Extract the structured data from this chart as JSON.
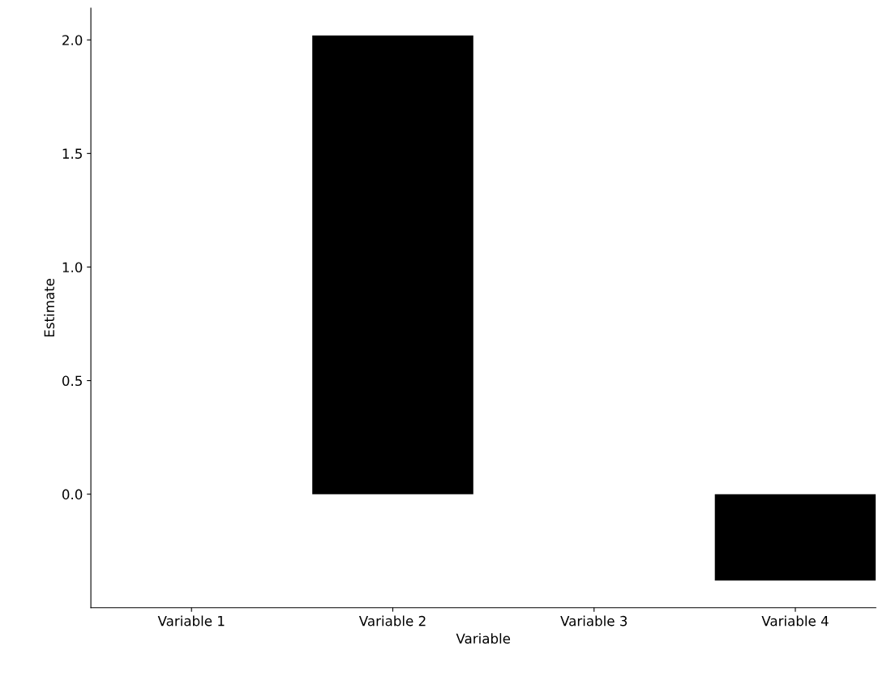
{
  "chart_data": {
    "type": "bar",
    "xlabel": "Variable",
    "ylabel": "Estimate",
    "categories": [
      "Variable 1",
      "Variable 2",
      "Variable 3",
      "Variable 4"
    ],
    "values": [
      0,
      2.02,
      0,
      -0.38
    ],
    "color": "#000000",
    "ylim": [
      -0.5,
      2.14
    ],
    "yticks": [
      {
        "value": 0,
        "label": "0.0"
      },
      0.5,
      {
        "value": 1,
        "label": "1.0"
      },
      1.5,
      {
        "value": 2,
        "label": "2.0"
      }
    ],
    "grid": false,
    "legend": false
  }
}
